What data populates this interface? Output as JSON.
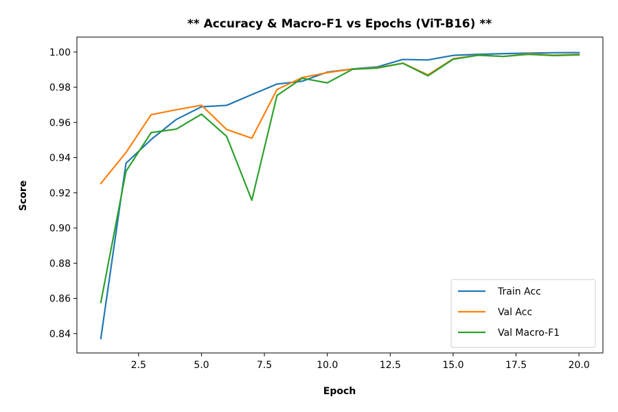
{
  "chart_data": {
    "type": "line",
    "title": "** Accuracy & Macro-F1 vs Epochs (ViT-B16) **",
    "xlabel": "Epoch",
    "ylabel": "Score",
    "xlim": [
      0.05,
      20.95
    ],
    "ylim": [
      0.829,
      1.0085
    ],
    "x_ticks": [
      2.5,
      5.0,
      7.5,
      10.0,
      12.5,
      15.0,
      17.5,
      20.0
    ],
    "x_tick_labels": [
      "2.5",
      "5.0",
      "7.5",
      "10.0",
      "12.5",
      "15.0",
      "17.5",
      "20.0"
    ],
    "y_ticks": [
      0.84,
      0.86,
      0.88,
      0.9,
      0.92,
      0.94,
      0.96,
      0.98,
      1.0
    ],
    "y_tick_labels": [
      "0.84",
      "0.86",
      "0.88",
      "0.90",
      "0.92",
      "0.94",
      "0.96",
      "0.98",
      "1.00"
    ],
    "grid": false,
    "legend_position": "lower-right",
    "x": [
      1,
      2,
      3,
      4,
      5,
      6,
      7,
      8,
      9,
      10,
      11,
      12,
      13,
      14,
      15,
      16,
      17,
      18,
      19,
      20
    ],
    "series": [
      {
        "name": "Train Acc",
        "color": "#1f77b4",
        "values": [
          0.8372,
          0.9368,
          0.9503,
          0.9617,
          0.9689,
          0.9697,
          0.9758,
          0.9818,
          0.9834,
          0.9886,
          0.9904,
          0.9916,
          0.9958,
          0.9955,
          0.9981,
          0.9987,
          0.9991,
          0.9994,
          0.9996,
          0.9997
        ]
      },
      {
        "name": "Val Acc",
        "color": "#ff7f0e",
        "values": [
          0.9253,
          0.9429,
          0.9644,
          0.9672,
          0.9698,
          0.956,
          0.951,
          0.9787,
          0.9855,
          0.9883,
          0.9903,
          0.9911,
          0.9937,
          0.987,
          0.9962,
          0.9982,
          0.9975,
          0.999,
          0.9982,
          0.9987
        ]
      },
      {
        "name": "Val Macro-F1",
        "color": "#2ca02c",
        "values": [
          0.8577,
          0.9322,
          0.9542,
          0.9562,
          0.9647,
          0.9521,
          0.9158,
          0.9753,
          0.9851,
          0.9825,
          0.9902,
          0.9909,
          0.9936,
          0.9865,
          0.9959,
          0.9982,
          0.9975,
          0.9987,
          0.998,
          0.9984
        ]
      }
    ]
  }
}
